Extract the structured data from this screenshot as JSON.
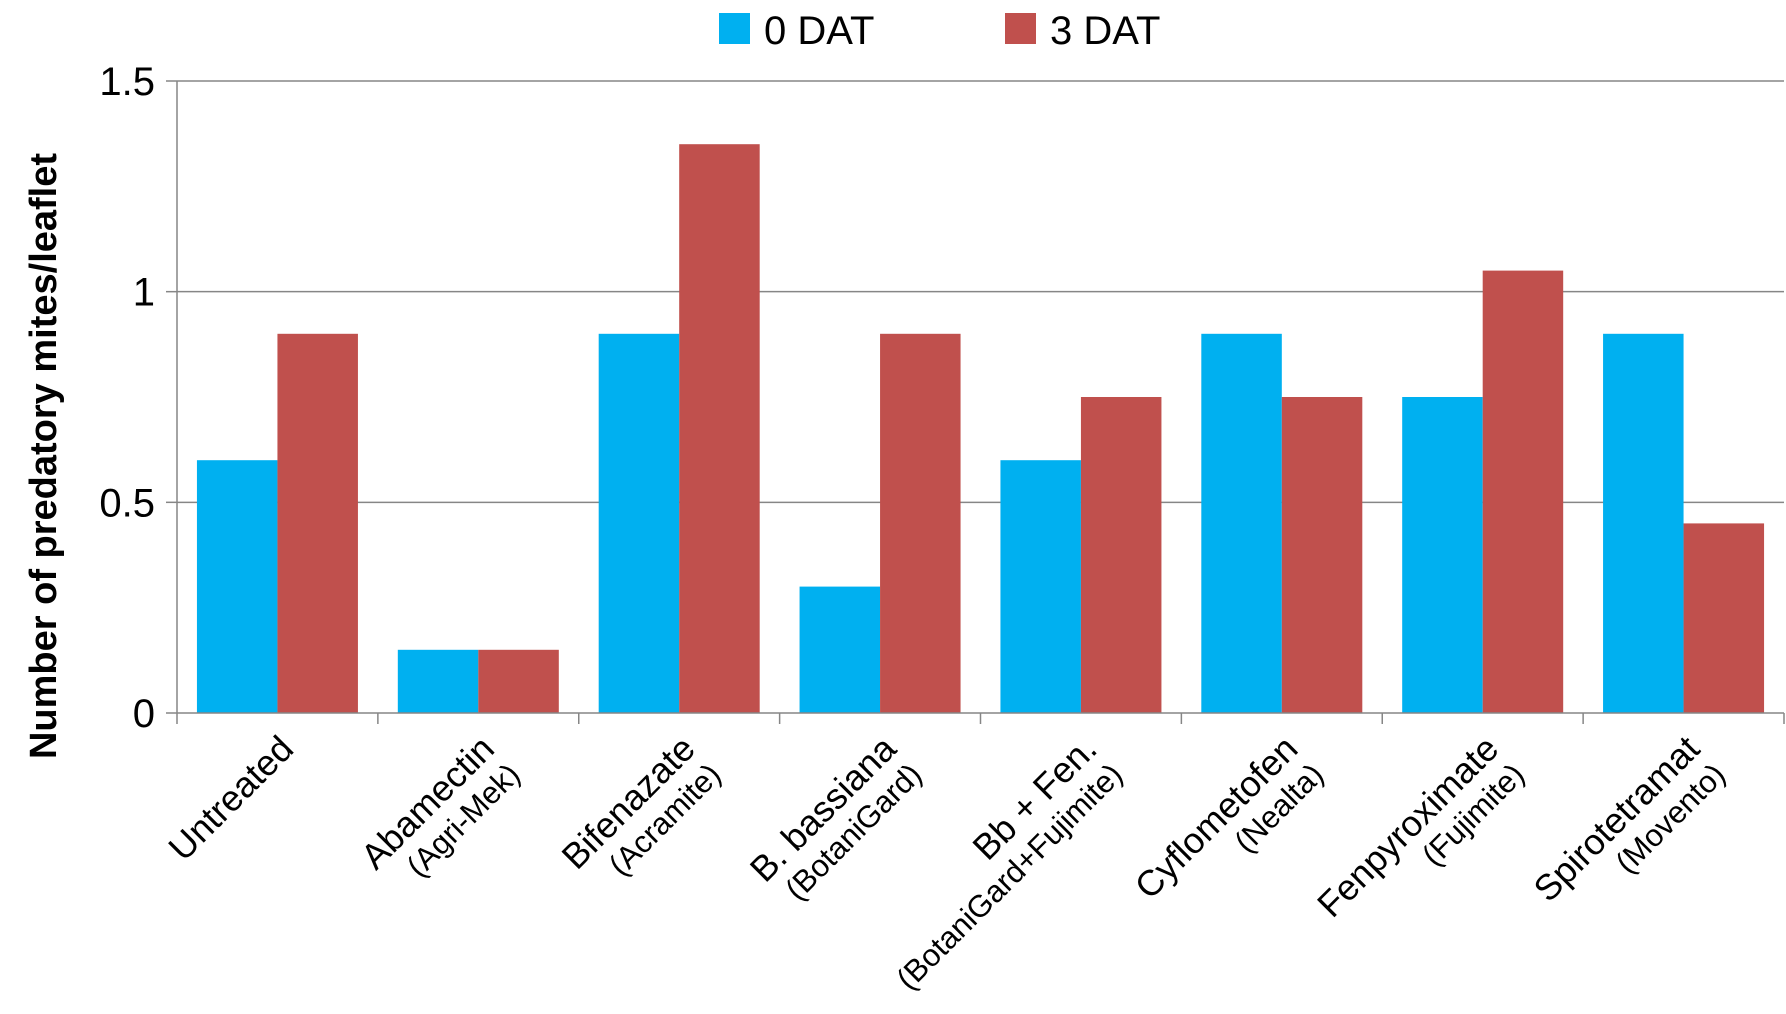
{
  "chart_data": {
    "type": "bar",
    "title": "",
    "xlabel": "",
    "ylabel": "Number of predatory mites/leaflet",
    "ylim": [
      0,
      1.5
    ],
    "yticks": [
      "0",
      "0.5",
      "1",
      "1.5"
    ],
    "grid": true,
    "legend_position": "top-center",
    "categories": [
      {
        "name": "Untreated",
        "sub": ""
      },
      {
        "name": "Abamectin",
        "sub": "(Agri-Mek)"
      },
      {
        "name": "Bifenazate",
        "sub": "(Acramite)"
      },
      {
        "name": "B. bassiana",
        "sub": "(BotaniGard)"
      },
      {
        "name": "Bb + Fen.",
        "sub": "(BotaniGard+Fujimite)"
      },
      {
        "name": "Cyflometofen",
        "sub": "(Nealta)"
      },
      {
        "name": "Fenpyroximate",
        "sub": "(Fujimite)"
      },
      {
        "name": "Spirotetramat",
        "sub": "(Movento)"
      }
    ],
    "series": [
      {
        "name": "0 DAT",
        "color": "#00B0F0",
        "values": [
          0.6,
          0.15,
          0.9,
          0.3,
          0.6,
          0.9,
          0.75,
          0.9
        ]
      },
      {
        "name": "3 DAT",
        "color": "#C0504D",
        "values": [
          0.9,
          0.15,
          1.35,
          0.9,
          0.75,
          0.75,
          1.05,
          0.45
        ]
      }
    ]
  }
}
